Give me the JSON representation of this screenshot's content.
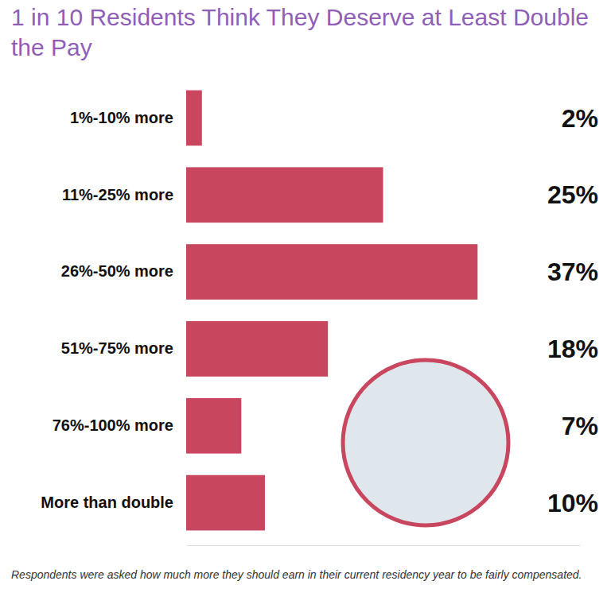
{
  "chart_data": {
    "type": "bar",
    "orientation": "horizontal",
    "title": "1 in 10 Residents Think They Deserve at Least Double the Pay",
    "categories": [
      "1%-10% more",
      "11%-25% more",
      "26%-50% more",
      "51%-75% more",
      "76%-100% more",
      "More than double"
    ],
    "values": [
      2,
      25,
      37,
      18,
      7,
      10
    ],
    "value_labels": [
      "2%",
      "25%",
      "37%",
      "18%",
      "7%",
      "10%"
    ],
    "color": "#c8475f",
    "xlim": [
      0,
      50
    ],
    "grid": false,
    "data_labels": true,
    "tick_labels": "y",
    "note": "Respondents were asked how much more they should earn in their current residency year to be fairly compensated."
  }
}
